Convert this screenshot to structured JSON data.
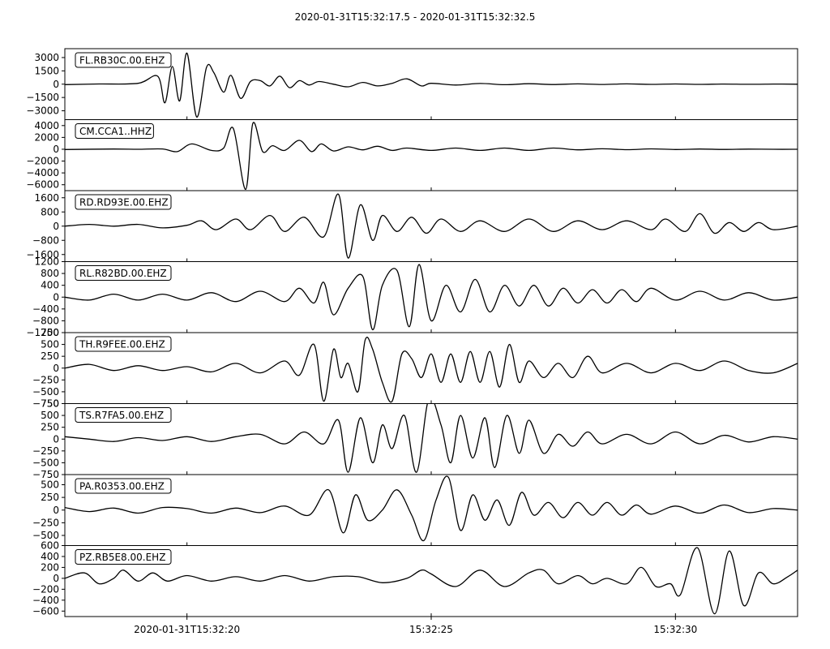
{
  "chart_data": {
    "type": "line",
    "title": "2020-01-31T15:32:17.5  -  2020-01-31T15:32:32.5",
    "x_range_seconds": [
      17.5,
      32.5
    ],
    "x_ticks": [
      {
        "t": 20,
        "label": "2020-01-31T15:32:20"
      },
      {
        "t": 25,
        "label": "15:32:25"
      },
      {
        "t": 30,
        "label": "15:32:30"
      }
    ],
    "panels": [
      {
        "name": "FL.RB30C.00.EHZ",
        "ylim": [
          -4000,
          4000
        ],
        "yticks": [
          3000,
          1500,
          0,
          -1500,
          -3000
        ],
        "ytick_labels": [
          "3000",
          "1500",
          "0",
          "−1500",
          "−3000"
        ],
        "x": [
          17.5,
          18.2,
          19.0,
          19.4,
          19.55,
          19.7,
          19.85,
          20.0,
          20.2,
          20.4,
          20.55,
          20.75,
          20.9,
          21.1,
          21.3,
          21.5,
          21.7,
          21.9,
          22.1,
          22.3,
          22.5,
          22.7,
          23.0,
          23.3,
          23.6,
          23.9,
          24.2,
          24.5,
          24.8,
          25.0,
          25.5,
          26.0,
          26.5,
          27.0,
          27.5,
          28.0,
          28.5,
          29.0,
          29.5,
          30.0,
          30.5,
          31.0,
          31.5,
          32.0,
          32.5
        ],
        "y": [
          -50,
          20,
          100,
          900,
          -2100,
          2000,
          -1900,
          3500,
          -3700,
          1900,
          1300,
          -900,
          1000,
          -1600,
          300,
          400,
          -200,
          900,
          -400,
          400,
          -100,
          300,
          0,
          -300,
          200,
          -200,
          100,
          600,
          -200,
          100,
          -100,
          80,
          -60,
          50,
          -40,
          30,
          -30,
          30,
          -20,
          20,
          -20,
          15,
          -10,
          10,
          0
        ]
      },
      {
        "name": "CM.CCA1..HHZ",
        "ylim": [
          -7000,
          5000
        ],
        "yticks": [
          4000,
          2000,
          0,
          -2000,
          -4000,
          -6000
        ],
        "ytick_labels": [
          "4000",
          "2000",
          "0",
          "−2000",
          "−4000",
          "−6000"
        ],
        "x": [
          17.5,
          18.5,
          19.0,
          19.5,
          19.8,
          20.1,
          20.5,
          20.75,
          20.95,
          21.2,
          21.35,
          21.55,
          21.75,
          22.0,
          22.3,
          22.55,
          22.75,
          23.0,
          23.3,
          23.6,
          23.9,
          24.2,
          24.5,
          25.0,
          25.5,
          26.0,
          26.5,
          27.0,
          27.5,
          28.0,
          28.5,
          29.0,
          29.5,
          30.0,
          30.5,
          31.0,
          31.5,
          32.0,
          32.5
        ],
        "y": [
          -50,
          30,
          0,
          50,
          -400,
          900,
          -200,
          200,
          3500,
          -6800,
          4400,
          -400,
          600,
          -200,
          1500,
          -400,
          900,
          -300,
          400,
          -100,
          500,
          -200,
          200,
          -200,
          200,
          -200,
          200,
          -200,
          200,
          -100,
          80,
          -80,
          60,
          -40,
          30,
          -30,
          20,
          -10,
          0
        ]
      },
      {
        "name": "RD.RD93E.00.EHZ",
        "ylim": [
          -2000,
          2000
        ],
        "yticks": [
          1600,
          800,
          0,
          -800,
          -1600
        ],
        "ytick_labels": [
          "1600",
          "800",
          "0",
          "−800",
          "−1600"
        ],
        "x": [
          17.5,
          18.0,
          18.5,
          19.0,
          19.5,
          20.0,
          20.3,
          20.6,
          21.0,
          21.3,
          21.7,
          22.0,
          22.4,
          22.8,
          23.1,
          23.3,
          23.55,
          23.8,
          24.0,
          24.3,
          24.6,
          24.9,
          25.2,
          25.6,
          26.0,
          26.5,
          27.0,
          27.5,
          28.0,
          28.5,
          29.0,
          29.5,
          29.8,
          30.2,
          30.5,
          30.8,
          31.1,
          31.4,
          31.7,
          32.0,
          32.5
        ],
        "y": [
          0,
          100,
          0,
          100,
          -100,
          50,
          300,
          -200,
          400,
          -200,
          600,
          -300,
          500,
          -600,
          1800,
          -1800,
          1200,
          -800,
          600,
          -300,
          500,
          -400,
          400,
          -300,
          300,
          -300,
          400,
          -300,
          300,
          -200,
          300,
          -200,
          400,
          -300,
          700,
          -400,
          200,
          -300,
          200,
          -200,
          0
        ]
      },
      {
        "name": "RL.R82BD.00.EHZ",
        "ylim": [
          -1200,
          1200
        ],
        "yticks": [
          1200,
          800,
          400,
          0,
          -400,
          -800,
          -1200
        ],
        "ytick_labels": [
          "1200",
          "800",
          "400",
          "0",
          "−400",
          "−800",
          "−1200"
        ],
        "x": [
          17.5,
          18.0,
          18.5,
          19.0,
          19.5,
          20.0,
          20.5,
          21.0,
          21.5,
          22.0,
          22.3,
          22.6,
          22.8,
          23.0,
          23.3,
          23.6,
          23.8,
          24.0,
          24.3,
          24.55,
          24.75,
          25.0,
          25.3,
          25.6,
          25.9,
          26.2,
          26.5,
          26.8,
          27.1,
          27.4,
          27.7,
          28.0,
          28.3,
          28.6,
          28.9,
          29.2,
          29.5,
          30.0,
          30.5,
          31.0,
          31.5,
          32.0,
          32.5
        ],
        "y": [
          0,
          -100,
          100,
          -100,
          100,
          -100,
          150,
          -150,
          200,
          -150,
          300,
          -200,
          500,
          -600,
          300,
          700,
          -1100,
          400,
          900,
          -1000,
          1100,
          -800,
          400,
          -500,
          600,
          -500,
          400,
          -300,
          400,
          -300,
          300,
          -200,
          250,
          -200,
          250,
          -150,
          300,
          -100,
          200,
          -100,
          150,
          -100,
          0
        ]
      },
      {
        "name": "TH.R9FEE.00.EHZ",
        "ylim": [
          -750,
          750
        ],
        "yticks": [
          750,
          500,
          250,
          0,
          -250,
          -500,
          -750
        ],
        "ytick_labels": [
          "750",
          "500",
          "250",
          "0",
          "−250",
          "−500",
          "−750"
        ],
        "x": [
          17.5,
          18.0,
          18.5,
          19.0,
          19.5,
          20.0,
          20.5,
          21.0,
          21.5,
          22.0,
          22.3,
          22.6,
          22.8,
          23.0,
          23.15,
          23.3,
          23.5,
          23.65,
          23.8,
          24.0,
          24.2,
          24.4,
          24.6,
          24.8,
          25.0,
          25.2,
          25.4,
          25.6,
          25.8,
          26.0,
          26.2,
          26.4,
          26.6,
          26.8,
          27.0,
          27.3,
          27.6,
          27.9,
          28.2,
          28.5,
          29.0,
          29.5,
          30.0,
          30.5,
          31.0,
          31.5,
          32.0,
          32.5
        ],
        "y": [
          0,
          80,
          -50,
          50,
          -50,
          30,
          -80,
          100,
          -100,
          150,
          -150,
          500,
          -700,
          400,
          -200,
          100,
          -500,
          600,
          400,
          -300,
          -700,
          300,
          200,
          -200,
          300,
          -300,
          300,
          -300,
          350,
          -300,
          350,
          -400,
          500,
          -300,
          150,
          -200,
          100,
          -200,
          250,
          -100,
          100,
          -100,
          100,
          -50,
          150,
          -50,
          -100,
          100
        ]
      },
      {
        "name": "TS.R7FA5.00.EHZ",
        "ylim": [
          -750,
          750
        ],
        "yticks": [
          750,
          500,
          250,
          0,
          -250,
          -500,
          -750
        ],
        "ytick_labels": [
          "750",
          "500",
          "250",
          "0",
          "−250",
          "−500",
          "−750"
        ],
        "x": [
          17.5,
          18.0,
          18.5,
          19.0,
          19.5,
          20.0,
          20.5,
          21.0,
          21.5,
          22.0,
          22.4,
          22.8,
          23.1,
          23.3,
          23.55,
          23.8,
          24.0,
          24.2,
          24.45,
          24.7,
          24.95,
          25.2,
          25.4,
          25.6,
          25.85,
          26.1,
          26.3,
          26.55,
          26.8,
          27.0,
          27.3,
          27.6,
          27.9,
          28.2,
          28.5,
          29.0,
          29.5,
          30.0,
          30.5,
          31.0,
          31.5,
          32.0,
          32.5
        ],
        "y": [
          50,
          0,
          -50,
          30,
          -30,
          50,
          -50,
          50,
          100,
          -100,
          150,
          -100,
          400,
          -700,
          450,
          -500,
          300,
          -200,
          500,
          -700,
          850,
          300,
          -500,
          500,
          -400,
          450,
          -600,
          500,
          -300,
          400,
          -300,
          100,
          -150,
          150,
          -100,
          100,
          -100,
          150,
          -100,
          80,
          -60,
          50,
          0
        ]
      },
      {
        "name": "PA.R0353.00.EHZ",
        "ylim": [
          -700,
          700
        ],
        "yticks": [
          500,
          250,
          0,
          -250,
          -500
        ],
        "ytick_labels": [
          "500",
          "250",
          "0",
          "−250",
          "−500"
        ],
        "x": [
          17.5,
          18.0,
          18.5,
          19.0,
          19.5,
          20.0,
          20.5,
          21.0,
          21.5,
          22.0,
          22.5,
          22.9,
          23.2,
          23.45,
          23.7,
          24.0,
          24.3,
          24.6,
          24.85,
          25.1,
          25.35,
          25.6,
          25.85,
          26.1,
          26.35,
          26.6,
          26.85,
          27.1,
          27.4,
          27.7,
          28.0,
          28.3,
          28.6,
          28.9,
          29.2,
          29.5,
          30.0,
          30.5,
          31.0,
          31.5,
          32.0,
          32.5
        ],
        "y": [
          50,
          -30,
          40,
          -60,
          50,
          30,
          -60,
          40,
          -50,
          80,
          -100,
          400,
          -450,
          300,
          -200,
          0,
          400,
          -100,
          -600,
          200,
          650,
          -400,
          300,
          -200,
          200,
          -300,
          350,
          -100,
          150,
          -150,
          150,
          -100,
          150,
          -100,
          100,
          -80,
          80,
          -60,
          100,
          -50,
          30,
          0
        ]
      },
      {
        "name": "PZ.RB5E8.00.EHZ",
        "ylim": [
          -700,
          600
        ],
        "yticks": [
          600,
          400,
          200,
          0,
          -200,
          -400,
          -600
        ],
        "ytick_labels": [
          "600",
          "400",
          "200",
          "0",
          "−200",
          "−400",
          "−600"
        ],
        "x": [
          17.5,
          17.9,
          18.2,
          18.5,
          18.7,
          19.0,
          19.3,
          19.6,
          20.0,
          20.5,
          21.0,
          21.5,
          22.0,
          22.5,
          23.0,
          23.5,
          24.0,
          24.5,
          24.8,
          25.0,
          25.5,
          26.0,
          26.5,
          27.0,
          27.3,
          27.6,
          28.0,
          28.3,
          28.6,
          29.0,
          29.3,
          29.6,
          29.9,
          30.1,
          30.45,
          30.8,
          31.1,
          31.4,
          31.7,
          32.0,
          32.3,
          32.5
        ],
        "y": [
          0,
          100,
          -100,
          0,
          150,
          -50,
          100,
          -50,
          50,
          -50,
          30,
          -50,
          50,
          -50,
          30,
          30,
          -80,
          0,
          150,
          80,
          -150,
          150,
          -150,
          100,
          150,
          -100,
          50,
          -100,
          0,
          -100,
          200,
          -150,
          -100,
          -300,
          560,
          -650,
          500,
          -500,
          100,
          -100,
          30,
          150
        ]
      }
    ]
  }
}
